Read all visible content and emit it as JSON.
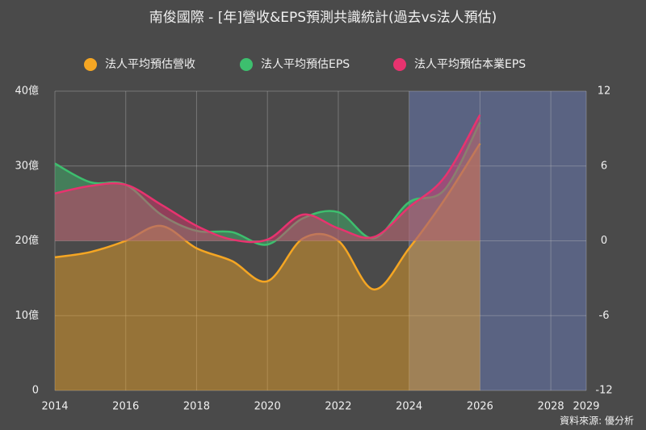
{
  "chart_data": {
    "type": "line",
    "title": "南俊國際 - [年]營收&EPS預測共識統計(過去vs法人預估)",
    "source": "資料來源: 優分析",
    "x": [
      2014,
      2015,
      2016,
      2017,
      2018,
      2019,
      2020,
      2021,
      2022,
      2023,
      2024,
      2025,
      2026
    ],
    "series": [
      {
        "name": "法人平均預估營收",
        "color": "#f5a623",
        "axis": "y",
        "values": [
          17.8,
          18.5,
          20,
          22,
          19,
          17.3,
          14.6,
          20.3,
          20,
          13.5,
          19,
          25.5,
          33
        ]
      },
      {
        "name": "法人平均預估EPS",
        "color": "#3dbf6e",
        "axis": "y2",
        "values": [
          6.2,
          4.7,
          4.5,
          2.1,
          0.8,
          0.7,
          -0.3,
          1.8,
          2.3,
          0.2,
          3.1,
          4.1,
          9.5
        ]
      },
      {
        "name": "法人平均預估本業EPS",
        "color": "#e8336f",
        "axis": "y2",
        "values": [
          3.8,
          4.4,
          4.5,
          2.9,
          1.2,
          0.1,
          0.1,
          2.1,
          1.0,
          0.3,
          2.7,
          5.1,
          10.1
        ]
      }
    ],
    "xlim": [
      2014,
      2029
    ],
    "xticks": [
      2014,
      2016,
      2018,
      2020,
      2022,
      2024,
      2026,
      2028,
      2029
    ],
    "ylim": [
      0,
      40
    ],
    "yticks": [
      0,
      {
        "value": 10,
        "label": "10億"
      },
      {
        "value": 20,
        "label": "20億"
      },
      {
        "value": 30,
        "label": "30億"
      },
      {
        "value": 40,
        "label": "40億"
      }
    ],
    "y2lim": [
      -12,
      12
    ],
    "y2ticks": [
      -12,
      -6,
      0,
      6,
      12
    ],
    "shaded_xrange": [
      2024,
      2029
    ],
    "grid": true
  }
}
